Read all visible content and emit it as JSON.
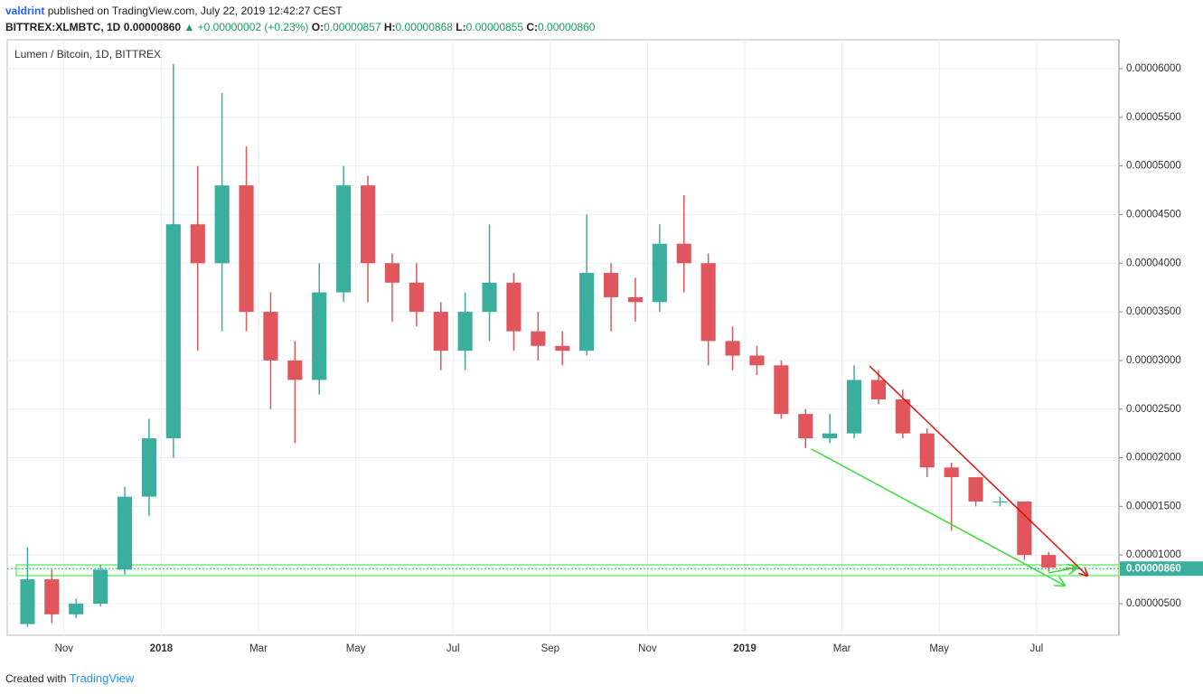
{
  "header": {
    "author": "valdrint",
    "published": "published on TradingView.com, July 22, 2019 12:42:27 CEST",
    "symbol": "BITTREX:XLMBTC, 1D",
    "last": "0.00000860",
    "change": "▲ +0.00000002 (+0.23%)",
    "ohlc": [
      {
        "label": "O:",
        "value": "0.00000857"
      },
      {
        "label": "H:",
        "value": "0.00000868"
      },
      {
        "label": "L:",
        "value": "0.00000855"
      },
      {
        "label": "C:",
        "value": "0.00000860"
      }
    ]
  },
  "footer": {
    "created": "Created with",
    "brand": "TradingView"
  },
  "chart_data": {
    "type": "candlestick",
    "title": "Lumen / Bitcoin, 1D, BITTREX",
    "categories": [
      null,
      null,
      "Nov",
      null,
      null,
      null,
      "2018",
      null,
      null,
      null,
      "Mar",
      null,
      null,
      null,
      "May",
      null,
      null,
      null,
      "Jul",
      null,
      null,
      null,
      "Sep",
      null,
      null,
      null,
      "Nov",
      null,
      null,
      null,
      "2019",
      null,
      null,
      null,
      "Mar",
      null,
      null,
      null,
      "May",
      null,
      null,
      null,
      "Jul",
      null
    ],
    "open": [
      2.9e-06,
      7.5e-06,
      3.9e-06,
      5e-06,
      8.5e-06,
      1.6e-05,
      2.2e-05,
      4.4e-05,
      4e-05,
      4.8e-05,
      3.5e-05,
      3e-05,
      2.8e-05,
      3.7e-05,
      4.8e-05,
      4e-05,
      3.8e-05,
      3.5e-05,
      3.1e-05,
      3.5e-05,
      3.8e-05,
      3.3e-05,
      3.15e-05,
      3.1e-05,
      3.9e-05,
      3.65e-05,
      3.6e-05,
      4.2e-05,
      4e-05,
      3.2e-05,
      3.05e-05,
      2.95e-05,
      2.45e-05,
      2.2e-05,
      2.25e-05,
      2.8e-05,
      2.6e-05,
      2.25e-05,
      1.9e-05,
      1.8e-05,
      1.55e-05,
      1.55e-05,
      1e-05,
      8.7e-06
    ],
    "high": [
      1.08e-05,
      8.5e-06,
      5.5e-06,
      9e-06,
      1.7e-05,
      2.4e-05,
      6.05e-05,
      5e-05,
      5.75e-05,
      5.2e-05,
      3.7e-05,
      3.2e-05,
      4e-05,
      5e-05,
      4.9e-05,
      4.1e-05,
      4e-05,
      3.6e-05,
      3.7e-05,
      4.4e-05,
      3.9e-05,
      3.5e-05,
      3.3e-05,
      4.5e-05,
      4e-05,
      3.85e-05,
      4.4e-05,
      4.7e-05,
      4.1e-05,
      3.35e-05,
      3.15e-05,
      3e-05,
      2.5e-05,
      2.45e-05,
      2.95e-05,
      2.9e-05,
      2.7e-05,
      2.3e-05,
      1.95e-05,
      1.8e-05,
      1.6e-05,
      1.55e-05,
      1.03e-05,
      8.9e-06
    ],
    "low": [
      2.6e-06,
      3e-06,
      3.5e-06,
      4.7e-06,
      8e-06,
      1.4e-05,
      2e-05,
      3.1e-05,
      3.3e-05,
      3.3e-05,
      2.5e-05,
      2.15e-05,
      2.65e-05,
      3.6e-05,
      3.6e-05,
      3.4e-05,
      3.35e-05,
      2.9e-05,
      2.9e-05,
      3.2e-05,
      3.1e-05,
      3e-05,
      2.95e-05,
      3.05e-05,
      3.3e-05,
      3.4e-05,
      3.5e-05,
      3.7e-05,
      2.95e-05,
      2.9e-05,
      2.85e-05,
      2.4e-05,
      2.1e-05,
      2.15e-05,
      2.2e-05,
      2.55e-05,
      2.2e-05,
      1.8e-05,
      1.25e-05,
      1.5e-05,
      1.5e-05,
      9.5e-06,
      8.3e-06,
      8.3e-06
    ],
    "close": [
      7.5e-06,
      3.9e-06,
      5e-06,
      8.5e-06,
      1.6e-05,
      2.2e-05,
      4.4e-05,
      4e-05,
      4.8e-05,
      3.5e-05,
      3e-05,
      2.8e-05,
      3.7e-05,
      4.8e-05,
      4e-05,
      3.8e-05,
      3.5e-05,
      3.1e-05,
      3.5e-05,
      3.8e-05,
      3.3e-05,
      3.15e-05,
      3.1e-05,
      3.9e-05,
      3.65e-05,
      3.6e-05,
      4.2e-05,
      4e-05,
      3.2e-05,
      3.05e-05,
      2.95e-05,
      2.45e-05,
      2.2e-05,
      2.25e-05,
      2.8e-05,
      2.6e-05,
      2.25e-05,
      1.9e-05,
      1.8e-05,
      1.55e-05,
      1.55e-05,
      1e-05,
      8.7e-06,
      8.6e-06
    ],
    "up_color": "#3cae9e",
    "down_color": "#e0565c",
    "ylim": [
      1.75e-06,
      6.297e-05
    ],
    "yticks": [
      {
        "value": 5e-06,
        "label": "0.00000500"
      },
      {
        "value": 1e-05,
        "label": "0.00001000"
      },
      {
        "value": 1.5e-05,
        "label": "0.00001500"
      },
      {
        "value": 2e-05,
        "label": "0.00002000"
      },
      {
        "value": 2.5e-05,
        "label": "0.00002500"
      },
      {
        "value": 3e-05,
        "label": "0.00003000"
      },
      {
        "value": 3.5e-05,
        "label": "0.00003500"
      },
      {
        "value": 4e-05,
        "label": "0.00004000"
      },
      {
        "value": 4.5e-05,
        "label": "0.00004500"
      },
      {
        "value": 5e-05,
        "label": "0.00005000"
      },
      {
        "value": 5.5e-05,
        "label": "0.00005500"
      },
      {
        "value": 6e-05,
        "label": "0.00006000"
      }
    ],
    "grid": true,
    "price_tag": "0.00000860"
  }
}
